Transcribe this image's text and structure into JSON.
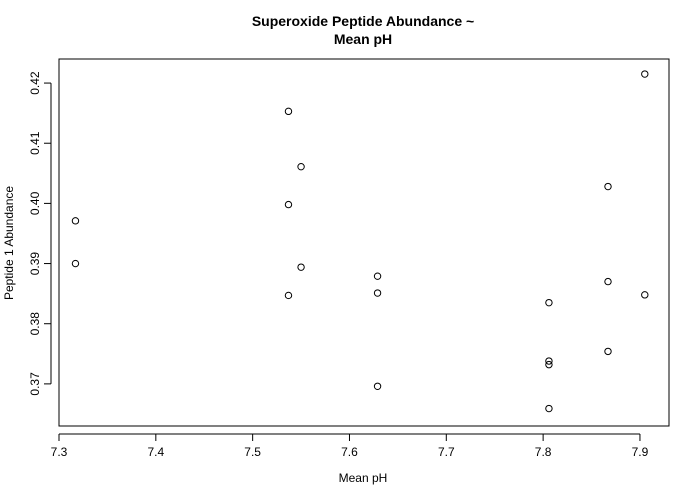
{
  "chart_data": {
    "type": "scatter",
    "title_lines": [
      "Superoxide Peptide Abundance ~",
      "Mean pH"
    ],
    "xlabel": "Mean pH",
    "ylabel": "Peptide 1 Abundance",
    "xlim": [
      7.3,
      7.93
    ],
    "ylim": [
      0.363,
      0.424
    ],
    "x_ticks": [
      7.3,
      7.4,
      7.5,
      7.6,
      7.7,
      7.8,
      7.9
    ],
    "x_tick_labels": [
      "7.3",
      "7.4",
      "7.5",
      "7.6",
      "7.7",
      "7.8",
      "7.9"
    ],
    "y_ticks": [
      0.37,
      0.38,
      0.39,
      0.4,
      0.41,
      0.42
    ],
    "y_tick_labels": [
      "0.37",
      "0.38",
      "0.39",
      "0.40",
      "0.41",
      "0.42"
    ],
    "grid": false,
    "points": [
      {
        "x": 7.317,
        "y": 0.3971
      },
      {
        "x": 7.317,
        "y": 0.39
      },
      {
        "x": 7.537,
        "y": 0.4153
      },
      {
        "x": 7.537,
        "y": 0.3998
      },
      {
        "x": 7.537,
        "y": 0.3847
      },
      {
        "x": 7.55,
        "y": 0.4061
      },
      {
        "x": 7.55,
        "y": 0.3894
      },
      {
        "x": 7.629,
        "y": 0.3879
      },
      {
        "x": 7.629,
        "y": 0.3851
      },
      {
        "x": 7.629,
        "y": 0.3696
      },
      {
        "x": 7.806,
        "y": 0.3835
      },
      {
        "x": 7.806,
        "y": 0.3738
      },
      {
        "x": 7.806,
        "y": 0.3732
      },
      {
        "x": 7.806,
        "y": 0.3659
      },
      {
        "x": 7.867,
        "y": 0.4028
      },
      {
        "x": 7.867,
        "y": 0.387
      },
      {
        "x": 7.867,
        "y": 0.3754
      },
      {
        "x": 7.905,
        "y": 0.4215
      },
      {
        "x": 7.905,
        "y": 0.3848
      }
    ]
  }
}
